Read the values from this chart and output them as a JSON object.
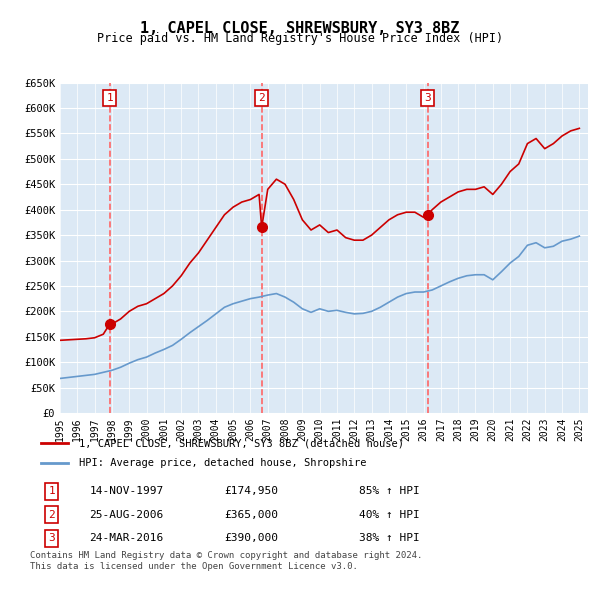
{
  "title": "1, CAPEL CLOSE, SHREWSBURY, SY3 8BZ",
  "subtitle": "Price paid vs. HM Land Registry's House Price Index (HPI)",
  "legend_line1": "1, CAPEL CLOSE, SHREWSBURY, SY3 8BZ (detached house)",
  "legend_line2": "HPI: Average price, detached house, Shropshire",
  "footer1": "Contains HM Land Registry data © Crown copyright and database right 2024.",
  "footer2": "This data is licensed under the Open Government Licence v3.0.",
  "sales": [
    {
      "num": 1,
      "date": "14-NOV-1997",
      "price": 174950,
      "pct": "85%",
      "x_year": 1997.87
    },
    {
      "num": 2,
      "date": "25-AUG-2006",
      "price": 365000,
      "pct": "40%",
      "x_year": 2006.65
    },
    {
      "num": 3,
      "date": "24-MAR-2016",
      "price": 390000,
      "pct": "38%",
      "x_year": 2016.23
    }
  ],
  "ylim": [
    0,
    650000
  ],
  "xlim": [
    1995.0,
    2025.5
  ],
  "yticks": [
    0,
    50000,
    100000,
    150000,
    200000,
    250000,
    300000,
    350000,
    400000,
    450000,
    500000,
    550000,
    600000,
    650000
  ],
  "ytick_labels": [
    "£0",
    "£50K",
    "£100K",
    "£150K",
    "£200K",
    "£250K",
    "£300K",
    "£350K",
    "£400K",
    "£450K",
    "£500K",
    "£550K",
    "£600K",
    "£650K"
  ],
  "xticks": [
    1995,
    1996,
    1997,
    1998,
    1999,
    2000,
    2001,
    2002,
    2003,
    2004,
    2005,
    2006,
    2007,
    2008,
    2009,
    2010,
    2011,
    2012,
    2013,
    2014,
    2015,
    2016,
    2017,
    2018,
    2019,
    2020,
    2021,
    2022,
    2023,
    2024,
    2025
  ],
  "plot_bg": "#dce9f5",
  "grid_color": "#ffffff",
  "red_line_color": "#cc0000",
  "blue_line_color": "#6699cc",
  "sale_dot_color": "#cc0000",
  "vline_color": "#ff6666",
  "box_color": "#cc0000",
  "hpi_red_data_x": [
    1995.0,
    1995.5,
    1996.0,
    1996.5,
    1997.0,
    1997.5,
    1997.87,
    1998.0,
    1998.5,
    1999.0,
    1999.5,
    2000.0,
    2000.5,
    2001.0,
    2001.5,
    2002.0,
    2002.5,
    2003.0,
    2003.5,
    2004.0,
    2004.5,
    2005.0,
    2005.5,
    2006.0,
    2006.5,
    2006.65,
    2007.0,
    2007.5,
    2008.0,
    2008.5,
    2009.0,
    2009.5,
    2010.0,
    2010.5,
    2011.0,
    2011.5,
    2012.0,
    2012.5,
    2013.0,
    2013.5,
    2014.0,
    2014.5,
    2015.0,
    2015.5,
    2016.0,
    2016.23,
    2016.5,
    2017.0,
    2017.5,
    2018.0,
    2018.5,
    2019.0,
    2019.5,
    2020.0,
    2020.5,
    2021.0,
    2021.5,
    2022.0,
    2022.5,
    2023.0,
    2023.5,
    2024.0,
    2024.5,
    2025.0
  ],
  "hpi_red_data_y": [
    143000,
    144000,
    145000,
    146000,
    148000,
    155000,
    174950,
    175000,
    185000,
    200000,
    210000,
    215000,
    225000,
    235000,
    250000,
    270000,
    295000,
    315000,
    340000,
    365000,
    390000,
    405000,
    415000,
    420000,
    430000,
    365000,
    440000,
    460000,
    450000,
    420000,
    380000,
    360000,
    370000,
    355000,
    360000,
    345000,
    340000,
    340000,
    350000,
    365000,
    380000,
    390000,
    395000,
    395000,
    385000,
    390000,
    400000,
    415000,
    425000,
    435000,
    440000,
    440000,
    445000,
    430000,
    450000,
    475000,
    490000,
    530000,
    540000,
    520000,
    530000,
    545000,
    555000,
    560000
  ],
  "hpi_blue_data_x": [
    1995.0,
    1995.5,
    1996.0,
    1996.5,
    1997.0,
    1997.5,
    1998.0,
    1998.5,
    1999.0,
    1999.5,
    2000.0,
    2000.5,
    2001.0,
    2001.5,
    2002.0,
    2002.5,
    2003.0,
    2003.5,
    2004.0,
    2004.5,
    2005.0,
    2005.5,
    2006.0,
    2006.5,
    2007.0,
    2007.5,
    2008.0,
    2008.5,
    2009.0,
    2009.5,
    2010.0,
    2010.5,
    2011.0,
    2011.5,
    2012.0,
    2012.5,
    2013.0,
    2013.5,
    2014.0,
    2014.5,
    2015.0,
    2015.5,
    2016.0,
    2016.5,
    2017.0,
    2017.5,
    2018.0,
    2018.5,
    2019.0,
    2019.5,
    2020.0,
    2020.5,
    2021.0,
    2021.5,
    2022.0,
    2022.5,
    2023.0,
    2023.5,
    2024.0,
    2024.5,
    2025.0
  ],
  "hpi_blue_data_y": [
    68000,
    70000,
    72000,
    74000,
    76000,
    80000,
    84000,
    90000,
    98000,
    105000,
    110000,
    118000,
    125000,
    133000,
    145000,
    158000,
    170000,
    182000,
    195000,
    208000,
    215000,
    220000,
    225000,
    228000,
    232000,
    235000,
    228000,
    218000,
    205000,
    198000,
    205000,
    200000,
    202000,
    198000,
    195000,
    196000,
    200000,
    208000,
    218000,
    228000,
    235000,
    238000,
    238000,
    242000,
    250000,
    258000,
    265000,
    270000,
    272000,
    272000,
    262000,
    278000,
    295000,
    308000,
    330000,
    335000,
    325000,
    328000,
    338000,
    342000,
    348000
  ]
}
